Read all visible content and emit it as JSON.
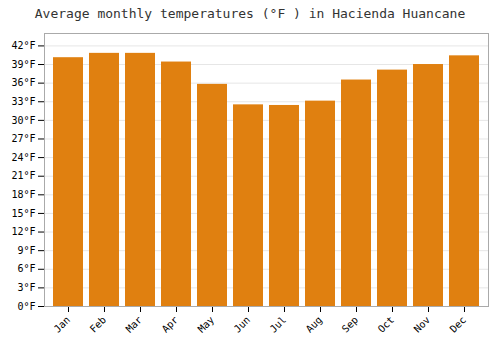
{
  "chart_data": {
    "type": "bar",
    "title": "Average monthly temperatures (°F ) in Hacienda Huancane",
    "categories": [
      "Jan",
      "Feb",
      "Mar",
      "Apr",
      "May",
      "Jun",
      "Jul",
      "Aug",
      "Sep",
      "Oct",
      "Nov",
      "Dec"
    ],
    "values": [
      40.1,
      40.8,
      40.8,
      39.4,
      35.8,
      32.5,
      32.4,
      33.1,
      36.5,
      38.1,
      39.0,
      40.4
    ],
    "color": "#E08010",
    "ylim": [
      0,
      44
    ],
    "yticks": [
      {
        "value": 0,
        "label": "0°F"
      },
      {
        "value": 3,
        "label": "3°F"
      },
      {
        "value": 6,
        "label": "6°F"
      },
      {
        "value": 9,
        "label": "9°F"
      },
      {
        "value": 12,
        "label": "12°F"
      },
      {
        "value": 15,
        "label": "15°F"
      },
      {
        "value": 18,
        "label": "18°F"
      },
      {
        "value": 21,
        "label": "21°F"
      },
      {
        "value": 24,
        "label": "24°F"
      },
      {
        "value": 27,
        "label": "27°F"
      },
      {
        "value": 30,
        "label": "30°F"
      },
      {
        "value": 33,
        "label": "33°F"
      },
      {
        "value": 36,
        "label": "36°F"
      },
      {
        "value": 39,
        "label": "39°F"
      },
      {
        "value": 42,
        "label": "42°F"
      }
    ],
    "grid": true
  }
}
